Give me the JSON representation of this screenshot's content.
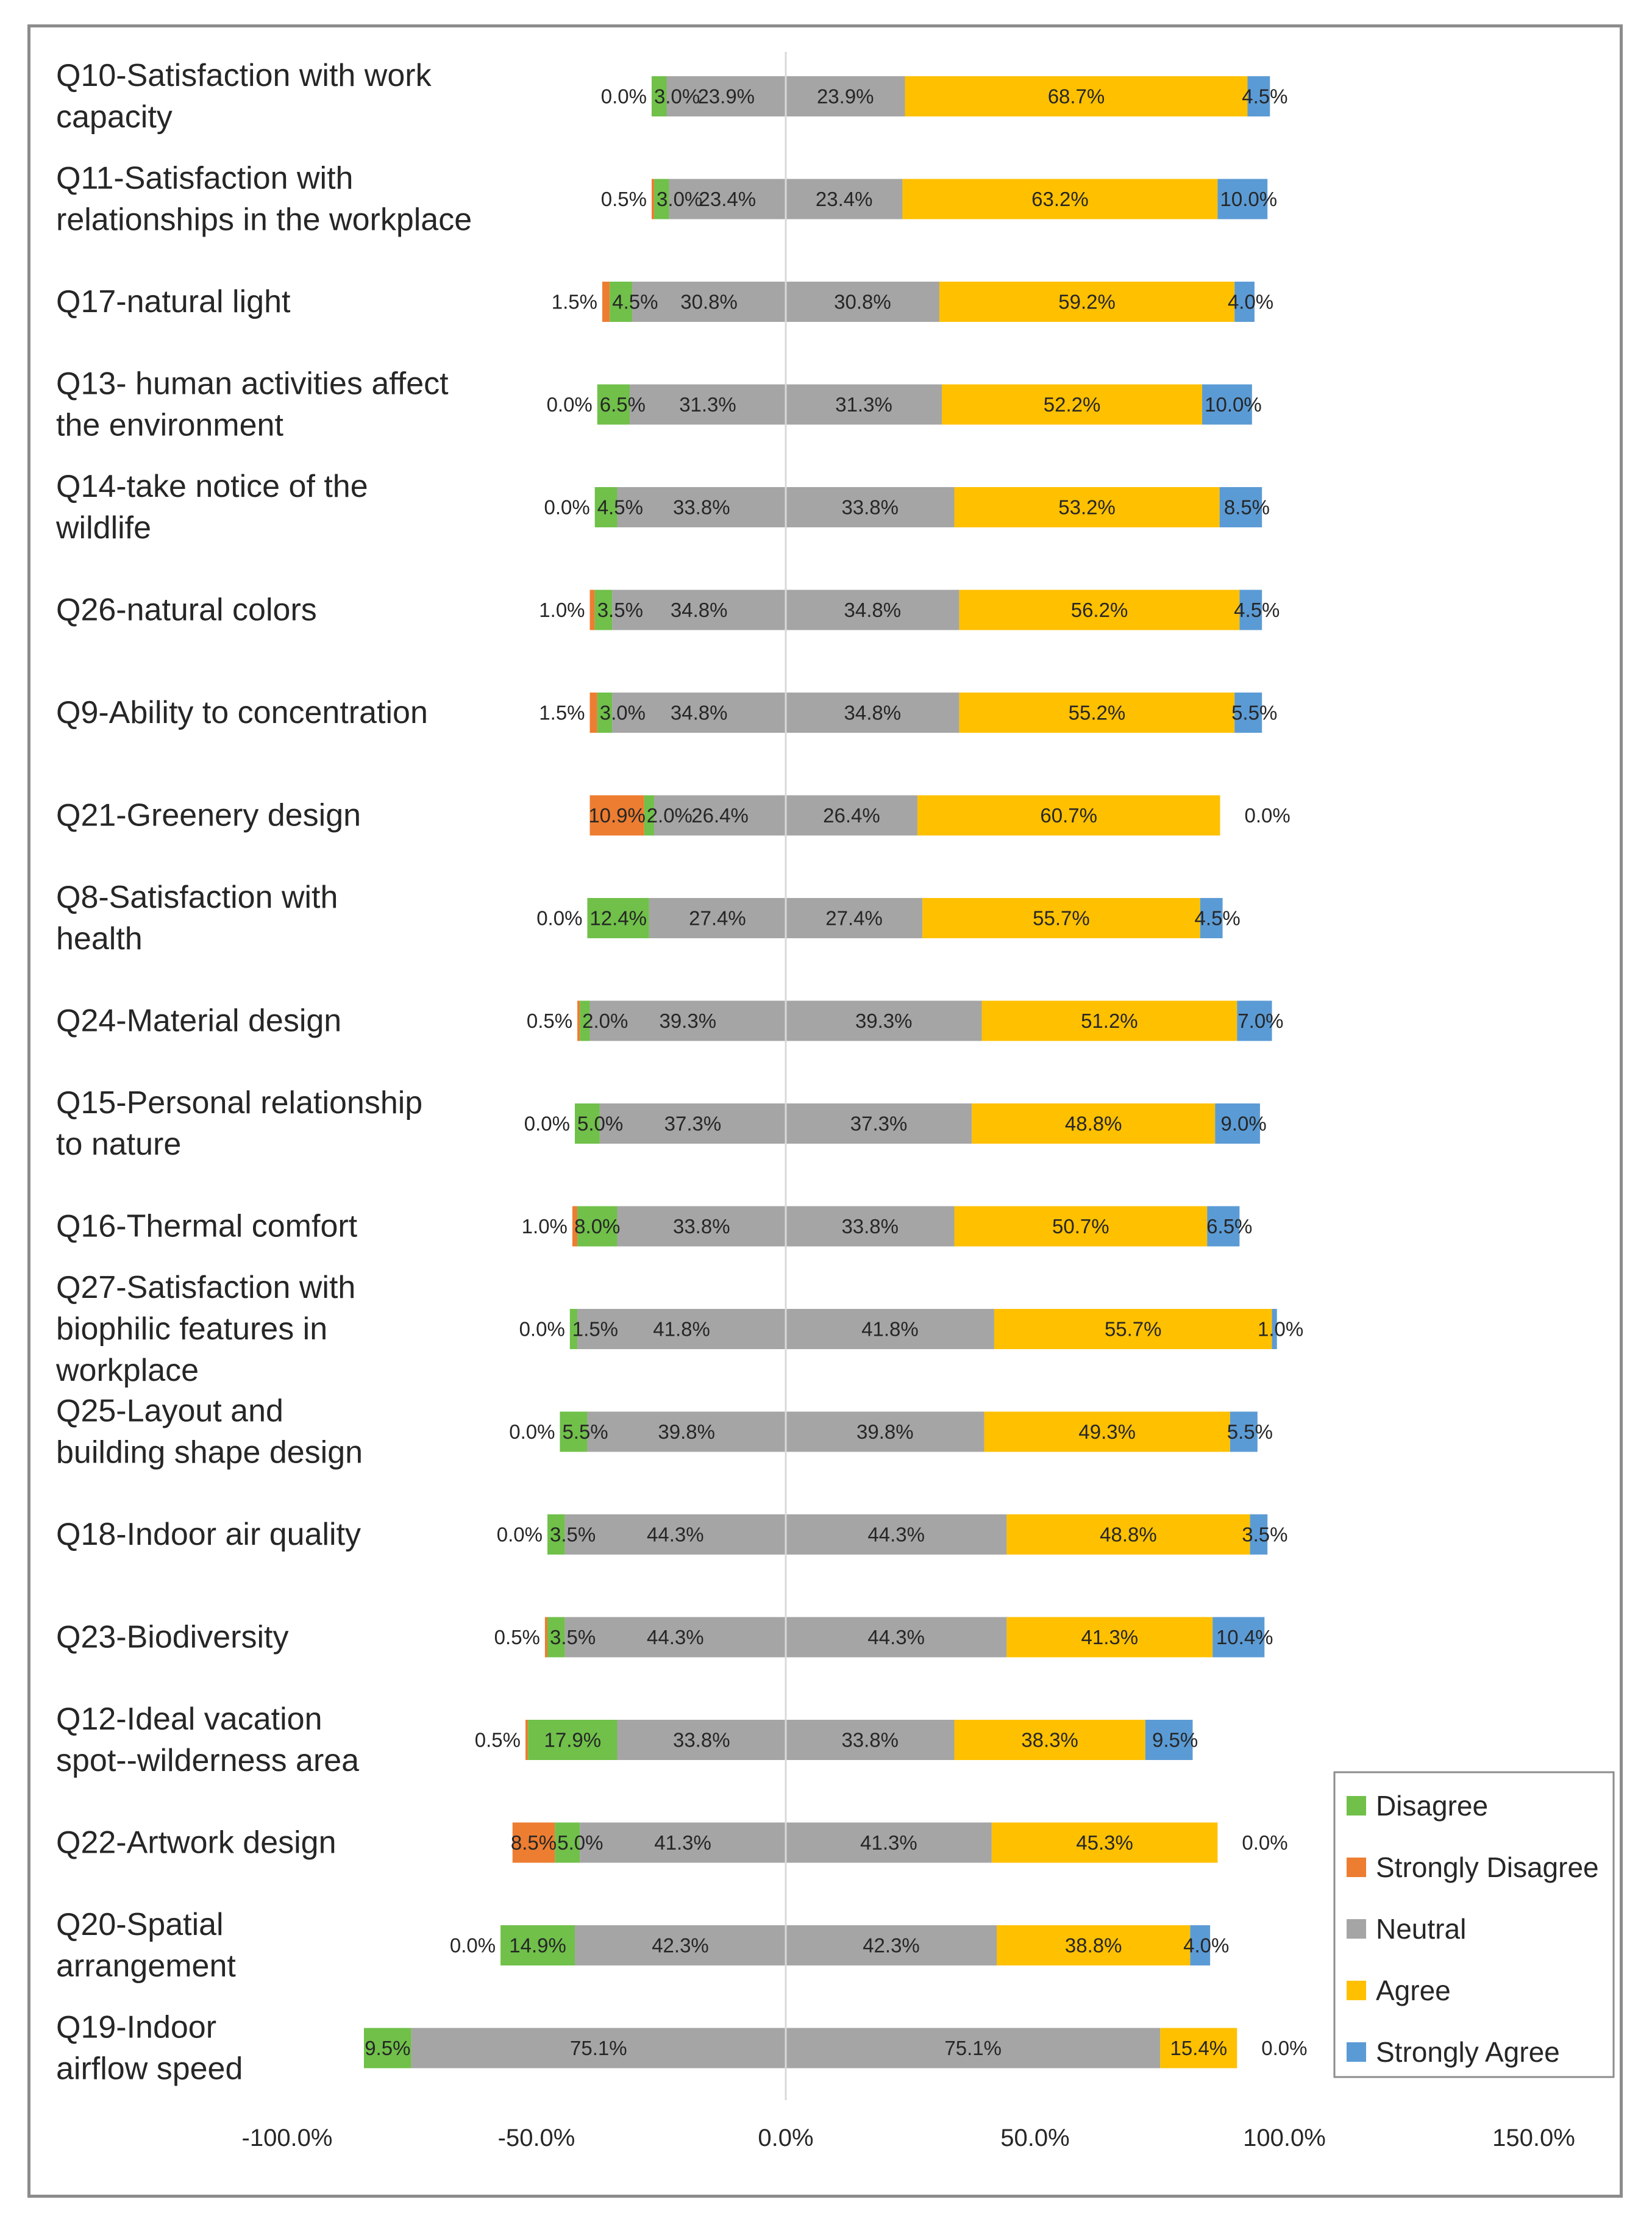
{
  "chart_data": {
    "type": "bar",
    "orientation": "horizontal",
    "stacked": true,
    "layout": "diverging",
    "title": "",
    "xlabel": "",
    "ylabel": "",
    "xlim": [
      -100,
      150
    ],
    "xticks": [
      -100,
      -50,
      0,
      50,
      100,
      150
    ],
    "xtick_labels": [
      "-100.0%",
      "-50.0%",
      "0.0%",
      "50.0%",
      "100.0%",
      "150.0%"
    ],
    "legend": [
      "Disagree",
      "Strongly Disagree",
      "Neutral",
      "Agree",
      "Strongly Agree"
    ],
    "legend_position": "bottom-right",
    "colors": {
      "disagree": "#70c04a",
      "strongly_disagree": "#ed7d31",
      "neutral": "#a5a5a5",
      "agree": "#ffc000",
      "strongly_agree": "#5b9bd5"
    },
    "rows": [
      {
        "label": [
          "Q10-Satisfaction with work",
          "capacity"
        ],
        "strongly_disagree": 0.0,
        "disagree": 3.0,
        "neutral": 23.9,
        "agree": 68.7,
        "strongly_agree": 4.5,
        "labels": {
          "strongly_disagree": "0.0%",
          "disagree": "3.0%",
          "neutral_left": "23.9%",
          "neutral_right": "23.9%",
          "agree": "68.7%",
          "strongly_agree": "4.5%"
        }
      },
      {
        "label": [
          "Q11-Satisfaction with",
          "relationships in the workplace"
        ],
        "strongly_disagree": 0.5,
        "disagree": 3.0,
        "neutral": 23.4,
        "agree": 63.2,
        "strongly_agree": 10.0,
        "labels": {
          "strongly_disagree": "0.5%",
          "disagree": "3.0%",
          "neutral_left": "23.4%",
          "neutral_right": "23.4%",
          "agree": "63.2%",
          "strongly_agree": "10.0%"
        }
      },
      {
        "label": [
          "Q17-natural light"
        ],
        "strongly_disagree": 1.5,
        "disagree": 4.5,
        "neutral": 30.8,
        "agree": 59.2,
        "strongly_agree": 4.0,
        "labels": {
          "strongly_disagree": "1.5%",
          "disagree": "4.5%",
          "neutral_left": "30.8%",
          "neutral_right": "30.8%",
          "agree": "59.2%",
          "strongly_agree": "4.0%"
        }
      },
      {
        "label": [
          "Q13- human activities affect",
          "the environment"
        ],
        "strongly_disagree": 0.0,
        "disagree": 6.5,
        "neutral": 31.3,
        "agree": 52.2,
        "strongly_agree": 10.0,
        "labels": {
          "strongly_disagree": "0.0%",
          "disagree": "6.5%",
          "neutral_left": "31.3%",
          "neutral_right": "31.3%",
          "agree": "52.2%",
          "strongly_agree": "10.0%"
        }
      },
      {
        "label": [
          "Q14-take notice of the",
          "wildlife"
        ],
        "strongly_disagree": 0.0,
        "disagree": 4.5,
        "neutral": 33.8,
        "agree": 53.2,
        "strongly_agree": 8.5,
        "labels": {
          "strongly_disagree": "0.0%",
          "disagree": "4.5%",
          "neutral_left": "33.8%",
          "neutral_right": "33.8%",
          "agree": "53.2%",
          "strongly_agree": "8.5%"
        }
      },
      {
        "label": [
          "Q26-natural colors"
        ],
        "strongly_disagree": 1.0,
        "disagree": 3.5,
        "neutral": 34.8,
        "agree": 56.2,
        "strongly_agree": 4.5,
        "labels": {
          "strongly_disagree": "1.0%",
          "disagree": "3.5%",
          "neutral_left": "34.8%",
          "neutral_right": "34.8%",
          "agree": "56.2%",
          "strongly_agree": "4.5%"
        }
      },
      {
        "label": [
          "Q9-Ability to concentration"
        ],
        "strongly_disagree": 1.5,
        "disagree": 3.0,
        "neutral": 34.8,
        "agree": 55.2,
        "strongly_agree": 5.5,
        "labels": {
          "strongly_disagree": "1.5%",
          "disagree": "3.0%",
          "neutral_left": "34.8%",
          "neutral_right": "34.8%",
          "agree": "55.2%",
          "strongly_agree": "5.5%"
        }
      },
      {
        "label": [
          "Q21-Greenery design"
        ],
        "strongly_disagree": 10.9,
        "disagree": 2.0,
        "neutral": 26.4,
        "agree": 60.7,
        "strongly_agree": 0.0,
        "labels": {
          "strongly_disagree": "10.9%",
          "disagree": "2.0%",
          "neutral_left": "26.4%",
          "neutral_right": "26.4%",
          "agree": "60.7%",
          "strongly_agree": "0.0%"
        }
      },
      {
        "label": [
          "Q8-Satisfaction with",
          "health"
        ],
        "strongly_disagree": 0.0,
        "disagree": 12.4,
        "neutral": 27.4,
        "agree": 55.7,
        "strongly_agree": 4.5,
        "labels": {
          "strongly_disagree": "0.0%",
          "disagree": "12.4%",
          "neutral_left": "27.4%",
          "neutral_right": "27.4%",
          "agree": "55.7%",
          "strongly_agree": "4.5%"
        }
      },
      {
        "label": [
          "Q24-Material design"
        ],
        "strongly_disagree": 0.5,
        "disagree": 2.0,
        "neutral": 39.3,
        "agree": 51.2,
        "strongly_agree": 7.0,
        "labels": {
          "strongly_disagree": "0.5%",
          "disagree": "2.0%",
          "neutral_left": "39.3%",
          "neutral_right": "39.3%",
          "agree": "51.2%",
          "strongly_agree": "7.0%"
        }
      },
      {
        "label": [
          "Q15-Personal relationship",
          "to nature"
        ],
        "strongly_disagree": 0.0,
        "disagree": 5.0,
        "neutral": 37.3,
        "agree": 48.8,
        "strongly_agree": 9.0,
        "labels": {
          "strongly_disagree": "0.0%",
          "disagree": "5.0%",
          "neutral_left": "37.3%",
          "neutral_right": "37.3%",
          "agree": "48.8%",
          "strongly_agree": "9.0%"
        }
      },
      {
        "label": [
          "Q16-Thermal comfort"
        ],
        "strongly_disagree": 1.0,
        "disagree": 8.0,
        "neutral": 33.8,
        "agree": 50.7,
        "strongly_agree": 6.5,
        "labels": {
          "strongly_disagree": "1.0%",
          "disagree": "8.0%",
          "neutral_left": "33.8%",
          "neutral_right": "33.8%",
          "agree": "50.7%",
          "strongly_agree": "6.5%"
        }
      },
      {
        "label": [
          "Q27-Satisfaction with",
          "biophilic features in",
          "workplace"
        ],
        "strongly_disagree": 0.0,
        "disagree": 1.5,
        "neutral": 41.8,
        "agree": 55.7,
        "strongly_agree": 1.0,
        "labels": {
          "strongly_disagree": "0.0%",
          "disagree": "1.5%",
          "neutral_left": "41.8%",
          "neutral_right": "41.8%",
          "agree": "55.7%",
          "strongly_agree": "1.0%"
        }
      },
      {
        "label": [
          "Q25-Layout and",
          "building shape design"
        ],
        "strongly_disagree": 0.0,
        "disagree": 5.5,
        "neutral": 39.8,
        "agree": 49.3,
        "strongly_agree": 5.5,
        "labels": {
          "strongly_disagree": "0.0%",
          "disagree": "5.5%",
          "neutral_left": "39.8%",
          "neutral_right": "39.8%",
          "agree": "49.3%",
          "strongly_agree": "5.5%"
        }
      },
      {
        "label": [
          "Q18-Indoor air quality"
        ],
        "strongly_disagree": 0.0,
        "disagree": 3.5,
        "neutral": 44.3,
        "agree": 48.8,
        "strongly_agree": 3.5,
        "labels": {
          "strongly_disagree": "0.0%",
          "disagree": "3.5%",
          "neutral_left": "44.3%",
          "neutral_right": "44.3%",
          "agree": "48.8%",
          "strongly_agree": "3.5%"
        }
      },
      {
        "label": [
          "Q23-Biodiversity"
        ],
        "strongly_disagree": 0.5,
        "disagree": 3.5,
        "neutral": 44.3,
        "agree": 41.3,
        "strongly_agree": 10.4,
        "labels": {
          "strongly_disagree": "0.5%",
          "disagree": "3.5%",
          "neutral_left": "44.3%",
          "neutral_right": "44.3%",
          "agree": "41.3%",
          "strongly_agree": "10.4%"
        }
      },
      {
        "label": [
          "Q12-Ideal vacation",
          "spot--wilderness area"
        ],
        "strongly_disagree": 0.5,
        "disagree": 17.9,
        "neutral": 33.8,
        "agree": 38.3,
        "strongly_agree": 9.5,
        "labels": {
          "strongly_disagree": "0.5%",
          "disagree": "17.9%",
          "neutral_left": "33.8%",
          "neutral_right": "33.8%",
          "agree": "38.3%",
          "strongly_agree": "9.5%"
        }
      },
      {
        "label": [
          "Q22-Artwork design"
        ],
        "strongly_disagree": 8.5,
        "disagree": 5.0,
        "neutral": 41.3,
        "agree": 45.3,
        "strongly_agree": 0.0,
        "labels": {
          "strongly_disagree": "8.5%",
          "disagree": "5.0%",
          "neutral_left": "41.3%",
          "neutral_right": "41.3%",
          "agree": "45.3%",
          "strongly_agree": "0.0%"
        }
      },
      {
        "label": [
          "Q20-Spatial",
          "arrangement"
        ],
        "strongly_disagree": 0.0,
        "disagree": 14.9,
        "neutral": 42.3,
        "agree": 38.8,
        "strongly_agree": 4.0,
        "labels": {
          "strongly_disagree": "0.0%",
          "disagree": "14.9%",
          "neutral_left": "42.3%",
          "neutral_right": "42.3%",
          "agree": "38.8%",
          "strongly_agree": "4.0%"
        }
      },
      {
        "label": [
          "Q19-Indoor",
          "airflow speed"
        ],
        "strongly_disagree": 0.0,
        "disagree": 9.5,
        "neutral": 75.1,
        "agree": 15.4,
        "strongly_agree": 0.0,
        "labels": {
          "strongly_disagree": "",
          "disagree": "9.5%",
          "neutral_left": "75.1%",
          "neutral_right": "75.1%",
          "agree": "15.4%",
          "strongly_agree": "0.0%"
        }
      }
    ]
  }
}
